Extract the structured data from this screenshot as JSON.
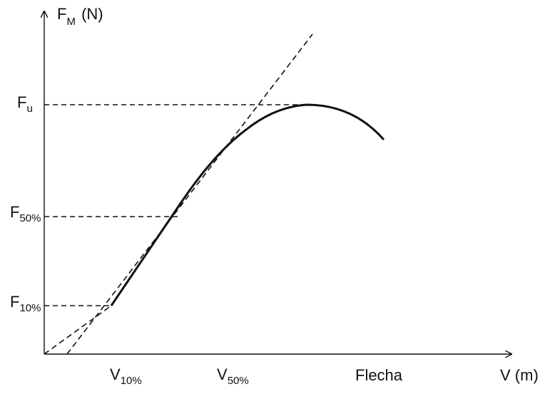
{
  "colors": {
    "ink": "#111111",
    "background": "#ffffff"
  },
  "axes": {
    "y_label": {
      "main": "F",
      "sub": "M",
      "rest": " (N)"
    },
    "x_label": "V (m)",
    "x_caption": "Flecha"
  },
  "y_marks": {
    "fu": {
      "main": "F",
      "sub": "u"
    },
    "f50": {
      "main": "F",
      "sub": "50%"
    },
    "f10": {
      "main": "F",
      "sub": "10%"
    }
  },
  "x_marks": {
    "v10": {
      "main": "V",
      "sub": "10%"
    },
    "v50": {
      "main": "V",
      "sub": "50%"
    }
  }
}
